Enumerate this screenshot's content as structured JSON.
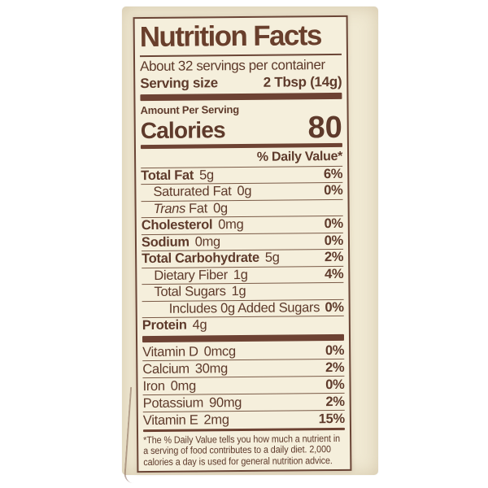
{
  "label": {
    "title": "Nutrition Facts",
    "servings_per_container": "About 32 servings per container",
    "serving_size_label": "Serving size",
    "serving_size_value": "2 Tbsp (14g)",
    "amount_per_serving": "Amount Per Serving",
    "calories_label": "Calories",
    "calories_value": "80",
    "daily_value_header": "% Daily Value*",
    "nutrients": [
      {
        "name": "Total Fat",
        "amount": "5g",
        "dv": "6%"
      },
      {
        "name": "Saturated Fat",
        "amount": "0g",
        "dv": "0%"
      },
      {
        "name_italic": "Trans",
        "name": "Fat",
        "amount": "0g",
        "dv": ""
      },
      {
        "name": "Cholesterol",
        "amount": "0mg",
        "dv": "0%"
      },
      {
        "name": "Sodium",
        "amount": "0mg",
        "dv": "0%"
      },
      {
        "name": "Total Carbohydrate",
        "amount": "5g",
        "dv": "2%"
      },
      {
        "name": "Dietary Fiber",
        "amount": "1g",
        "dv": "4%"
      },
      {
        "name": "Total Sugars",
        "amount": "1g",
        "dv": ""
      },
      {
        "name": "Includes 0g Added Sugars",
        "amount": "",
        "dv": "0%"
      },
      {
        "name": "Protein",
        "amount": "4g",
        "dv": ""
      }
    ],
    "vitamins": [
      {
        "name": "Vitamin D",
        "amount": "0mcg",
        "dv": "0%"
      },
      {
        "name": "Calcium",
        "amount": "30mg",
        "dv": "2%"
      },
      {
        "name": "Iron",
        "amount": "0mg",
        "dv": "0%"
      },
      {
        "name": "Potassium",
        "amount": "90mg",
        "dv": "2%"
      },
      {
        "name": "Vitamin E",
        "amount": "2mg",
        "dv": "15%"
      }
    ],
    "footnote_lines": [
      "*The % Daily Value tells you how much a nutrient in",
      "a serving of food contributes to a daily diet. 2,000",
      "calories a day is used for general nutrition advice."
    ]
  },
  "colors": {
    "text_brown": "#5e3a2b",
    "bar_brown": "#6d4233",
    "label_background": "#f5efdc",
    "package_background": "#f0e9d3",
    "page_background": "#ffffff"
  }
}
